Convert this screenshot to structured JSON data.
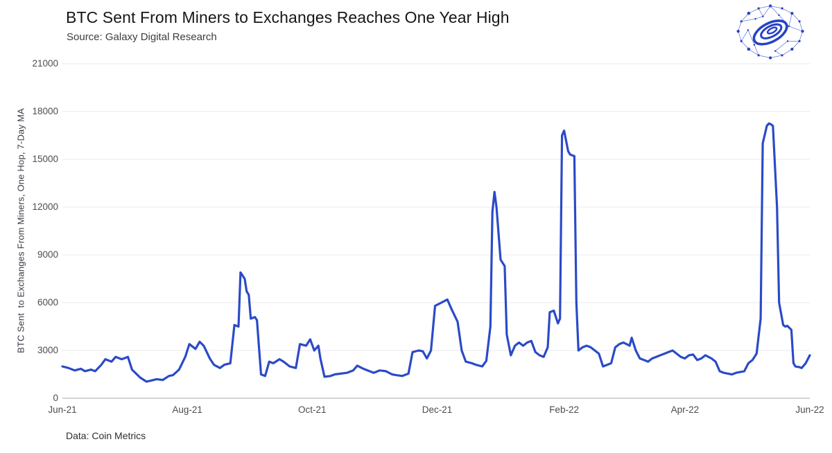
{
  "chart_data": {
    "type": "line",
    "title": "BTC Sent From Miners to Exchanges Reaches One Year High",
    "subtitle": "Source: Galaxy Digital Research",
    "caption": "Data: Coin Metrics",
    "ylabel": "BTC Sent  to Exchanges From Miners, One Hop, 7-Day MA",
    "xlabel": "",
    "xlim": [
      0,
      365
    ],
    "ylim": [
      0,
      21000
    ],
    "y_ticks": [
      0,
      3000,
      6000,
      9000,
      12000,
      15000,
      18000,
      21000
    ],
    "x_ticks": [
      {
        "pos": 0,
        "label": "Jun-21"
      },
      {
        "pos": 61,
        "label": "Aug-21"
      },
      {
        "pos": 122,
        "label": "Oct-21"
      },
      {
        "pos": 183,
        "label": "Dec-21"
      },
      {
        "pos": 245,
        "label": "Feb-22"
      },
      {
        "pos": 304,
        "label": "Apr-22"
      },
      {
        "pos": 365,
        "label": "Jun-22"
      }
    ],
    "grid": "horizontal-faint",
    "legend": "none",
    "line_color": "#2b4ac7",
    "series": [
      {
        "name": "BTC sent from miners to exchanges, one hop, 7-day MA",
        "points": [
          [
            0,
            2000
          ],
          [
            3,
            1900
          ],
          [
            6,
            1750
          ],
          [
            9,
            1850
          ],
          [
            11,
            1700
          ],
          [
            14,
            1800
          ],
          [
            16,
            1700
          ],
          [
            19,
            2100
          ],
          [
            21,
            2450
          ],
          [
            24,
            2300
          ],
          [
            26,
            2600
          ],
          [
            29,
            2450
          ],
          [
            32,
            2600
          ],
          [
            34,
            1800
          ],
          [
            38,
            1300
          ],
          [
            41,
            1050
          ],
          [
            43,
            1100
          ],
          [
            46,
            1200
          ],
          [
            49,
            1150
          ],
          [
            52,
            1400
          ],
          [
            54,
            1450
          ],
          [
            57,
            1800
          ],
          [
            60,
            2600
          ],
          [
            62,
            3400
          ],
          [
            65,
            3100
          ],
          [
            67,
            3550
          ],
          [
            69,
            3300
          ],
          [
            72,
            2500
          ],
          [
            74,
            2100
          ],
          [
            77,
            1900
          ],
          [
            79,
            2100
          ],
          [
            82,
            2200
          ],
          [
            84,
            4600
          ],
          [
            86,
            4500
          ],
          [
            87,
            7900
          ],
          [
            89,
            7500
          ],
          [
            90,
            6700
          ],
          [
            91,
            6500
          ],
          [
            92,
            5000
          ],
          [
            94,
            5100
          ],
          [
            95,
            4900
          ],
          [
            97,
            1500
          ],
          [
            99,
            1400
          ],
          [
            101,
            2300
          ],
          [
            103,
            2200
          ],
          [
            106,
            2450
          ],
          [
            108,
            2300
          ],
          [
            111,
            2000
          ],
          [
            114,
            1900
          ],
          [
            116,
            3400
          ],
          [
            119,
            3300
          ],
          [
            121,
            3700
          ],
          [
            123,
            3000
          ],
          [
            125,
            3300
          ],
          [
            126,
            2500
          ],
          [
            128,
            1350
          ],
          [
            131,
            1400
          ],
          [
            133,
            1500
          ],
          [
            136,
            1550
          ],
          [
            139,
            1600
          ],
          [
            142,
            1750
          ],
          [
            144,
            2050
          ],
          [
            147,
            1850
          ],
          [
            150,
            1700
          ],
          [
            152,
            1600
          ],
          [
            155,
            1750
          ],
          [
            158,
            1700
          ],
          [
            161,
            1500
          ],
          [
            163,
            1450
          ],
          [
            166,
            1400
          ],
          [
            169,
            1550
          ],
          [
            171,
            2900
          ],
          [
            174,
            3000
          ],
          [
            176,
            2950
          ],
          [
            178,
            2500
          ],
          [
            180,
            3000
          ],
          [
            182,
            5800
          ],
          [
            185,
            6000
          ],
          [
            188,
            6200
          ],
          [
            190,
            5600
          ],
          [
            193,
            4800
          ],
          [
            195,
            3000
          ],
          [
            197,
            2300
          ],
          [
            200,
            2200
          ],
          [
            202,
            2100
          ],
          [
            205,
            2000
          ],
          [
            207,
            2350
          ],
          [
            209,
            4500
          ],
          [
            210,
            11700
          ],
          [
            211,
            12950
          ],
          [
            212,
            12000
          ],
          [
            214,
            8700
          ],
          [
            216,
            8300
          ],
          [
            217,
            4000
          ],
          [
            219,
            2700
          ],
          [
            221,
            3300
          ],
          [
            223,
            3500
          ],
          [
            225,
            3300
          ],
          [
            227,
            3500
          ],
          [
            229,
            3600
          ],
          [
            231,
            2900
          ],
          [
            233,
            2700
          ],
          [
            235,
            2600
          ],
          [
            237,
            3200
          ],
          [
            238,
            5400
          ],
          [
            240,
            5500
          ],
          [
            242,
            4700
          ],
          [
            243,
            5000
          ],
          [
            244,
            16500
          ],
          [
            245,
            16800
          ],
          [
            247,
            15500
          ],
          [
            248,
            15300
          ],
          [
            250,
            15200
          ],
          [
            251,
            6000
          ],
          [
            252,
            3000
          ],
          [
            254,
            3200
          ],
          [
            256,
            3300
          ],
          [
            258,
            3200
          ],
          [
            260,
            3000
          ],
          [
            262,
            2800
          ],
          [
            264,
            2000
          ],
          [
            266,
            2100
          ],
          [
            268,
            2200
          ],
          [
            270,
            3200
          ],
          [
            272,
            3400
          ],
          [
            274,
            3500
          ],
          [
            277,
            3300
          ],
          [
            278,
            3800
          ],
          [
            280,
            3000
          ],
          [
            282,
            2500
          ],
          [
            284,
            2400
          ],
          [
            286,
            2300
          ],
          [
            288,
            2500
          ],
          [
            290,
            2600
          ],
          [
            292,
            2700
          ],
          [
            294,
            2800
          ],
          [
            296,
            2900
          ],
          [
            298,
            3000
          ],
          [
            300,
            2800
          ],
          [
            302,
            2600
          ],
          [
            304,
            2500
          ],
          [
            306,
            2700
          ],
          [
            308,
            2750
          ],
          [
            310,
            2400
          ],
          [
            312,
            2500
          ],
          [
            314,
            2700
          ],
          [
            317,
            2500
          ],
          [
            319,
            2300
          ],
          [
            321,
            1700
          ],
          [
            323,
            1600
          ],
          [
            325,
            1550
          ],
          [
            327,
            1500
          ],
          [
            329,
            1600
          ],
          [
            331,
            1650
          ],
          [
            333,
            1700
          ],
          [
            335,
            2200
          ],
          [
            337,
            2400
          ],
          [
            339,
            2800
          ],
          [
            341,
            5000
          ],
          [
            342,
            16000
          ],
          [
            344,
            17100
          ],
          [
            345,
            17250
          ],
          [
            346,
            17200
          ],
          [
            347,
            17100
          ],
          [
            349,
            12000
          ],
          [
            350,
            6000
          ],
          [
            352,
            4600
          ],
          [
            353,
            4500
          ],
          [
            354,
            4550
          ],
          [
            356,
            4300
          ],
          [
            357,
            2200
          ],
          [
            358,
            2000
          ],
          [
            360,
            1950
          ],
          [
            361,
            1900
          ],
          [
            363,
            2200
          ],
          [
            365,
            2700
          ]
        ]
      }
    ]
  },
  "colors": {
    "accent": "#2b4ac7",
    "logo_blue": "#2643c4",
    "grid": "#e9e9ef",
    "axis": "#b7b7bf",
    "tick_text": "#4c4c52"
  },
  "icons": {
    "logo": "galaxy-digital-network-globe"
  }
}
